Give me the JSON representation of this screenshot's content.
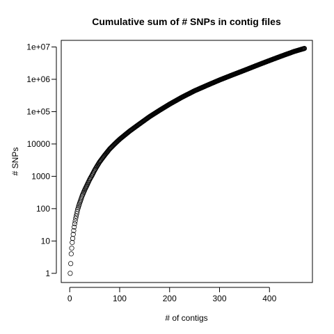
{
  "chart_data": {
    "type": "scatter",
    "title": "Cumulative sum of # SNPs in contig files",
    "xlabel": "# of contigs",
    "ylabel": "# SNPs",
    "xlim": [
      -17,
      486
    ],
    "ylim": [
      0.52,
      16000000
    ],
    "y_scale": "log",
    "x_ticks": [
      0,
      100,
      200,
      300,
      400
    ],
    "x_tick_labels": [
      "0",
      "100",
      "200",
      "300",
      "400"
    ],
    "y_ticks": [
      1,
      10,
      100,
      1000,
      10000,
      100000,
      1000000,
      10000000
    ],
    "y_tick_labels": [
      "1",
      "10",
      "100",
      "1000",
      "10000",
      "1e+05",
      "1e+06",
      "1e+07"
    ],
    "marker": "open-circle",
    "point_color": "#000000",
    "grid": false,
    "series": [
      {
        "x": [
          1,
          2,
          3,
          4,
          5,
          6,
          7,
          8,
          9,
          10,
          12,
          14,
          16,
          18,
          20,
          25,
          30,
          35,
          40,
          45,
          50,
          55,
          60,
          70,
          80,
          90,
          100,
          120,
          140,
          160,
          180,
          200,
          225,
          250,
          275,
          300,
          325,
          350,
          375,
          400,
          425,
          450,
          470
        ],
        "y": [
          1,
          2,
          4,
          6,
          9,
          12,
          16,
          21,
          27,
          34,
          50,
          70,
          95,
          120,
          150,
          250,
          380,
          550,
          800,
          1100,
          1550,
          2100,
          2800,
          4500,
          7000,
          10000,
          14000,
          25000,
          42000,
          70000,
          110000,
          170000,
          280000,
          440000,
          650000,
          950000,
          1350000,
          1900000,
          2700000,
          3800000,
          5300000,
          7300000,
          9000000
        ]
      }
    ]
  }
}
